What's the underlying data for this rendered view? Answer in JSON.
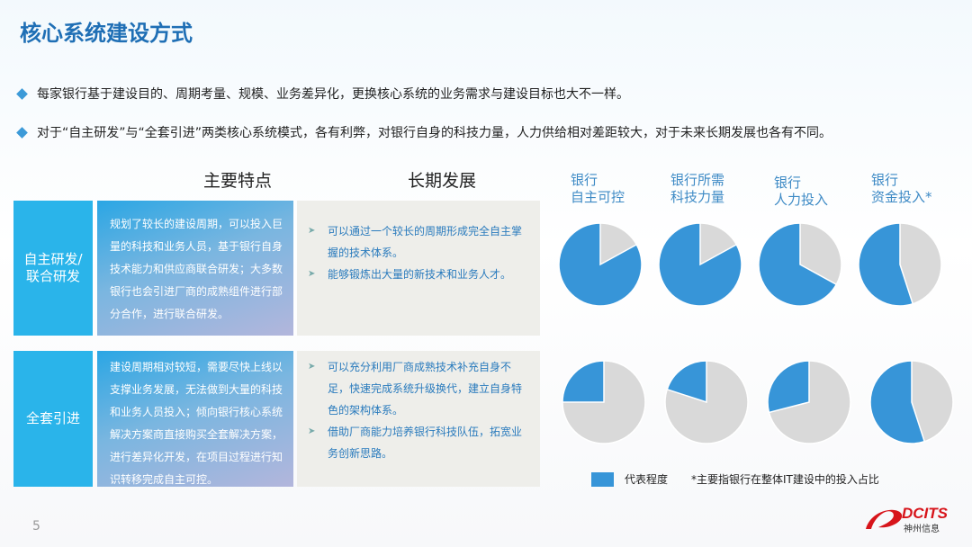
{
  "title": "核心系统建设方式",
  "bullets": [
    "每家银行基于建设目的、周期考量、规模、业务差异化，更换核心系统的业务需求与建设目标也大不一样。",
    "对于“自主研发”与“全套引进”两类核心系统模式，各有利弊，对银行自身的科技力量，人力供给相对差距较大，对于未来长期发展也各有不同。"
  ],
  "columns": {
    "features": "主要特点",
    "development": "长期发展"
  },
  "rows": [
    {
      "label": "自主研发/联合研发",
      "features": "规划了较长的建设周期，可以投入巨量的科技和业务人员，基于银行自身技术能力和供应商联合研发；大多数银行也会引进厂商的成熟组件进行部分合作，进行联合研发。",
      "development": [
        "可以通过一个较长的周期形成完全自主掌握的技术体系。",
        "能够锻炼出大量的新技术和业务人才。"
      ]
    },
    {
      "label": "全套引进",
      "features": "建设周期相对较短，需要尽快上线以支撑业务发展，无法做到大量的科技和业务人员投入；倾向银行核心系统解决方案商直接购买全套解决方案，进行差异化开发，在项目过程进行知识转移完成自主可控。",
      "development": [
        "可以充分利用厂商成熟技术补充自身不足，快速完成系统升级换代，建立自身特色的架构体系。",
        "借助厂商能力培养银行科技队伍，拓宽业务创新思路。"
      ]
    }
  ],
  "chart_data": {
    "type": "pie",
    "categories": [
      "银行\n自主可控",
      "银行所需\n科技力量",
      "银行\n人力投入",
      "银行\n资金投入*"
    ],
    "series": [
      {
        "row": "自主研发/联合研发",
        "values": [
          83,
          83,
          67,
          55
        ]
      },
      {
        "row": "全套引进",
        "values": [
          25,
          20,
          29,
          55
        ]
      }
    ],
    "unit": "percent of pie shown as 代表程度",
    "colors": {
      "represented": "#3795d8",
      "remainder": "#d9d9d9"
    }
  },
  "legend": {
    "label": "代表程度",
    "note": "*主要指银行在整体IT建设中的投入占比"
  },
  "page_number": "5",
  "logo": {
    "text": "DCITS",
    "subtext": "神州信息"
  }
}
